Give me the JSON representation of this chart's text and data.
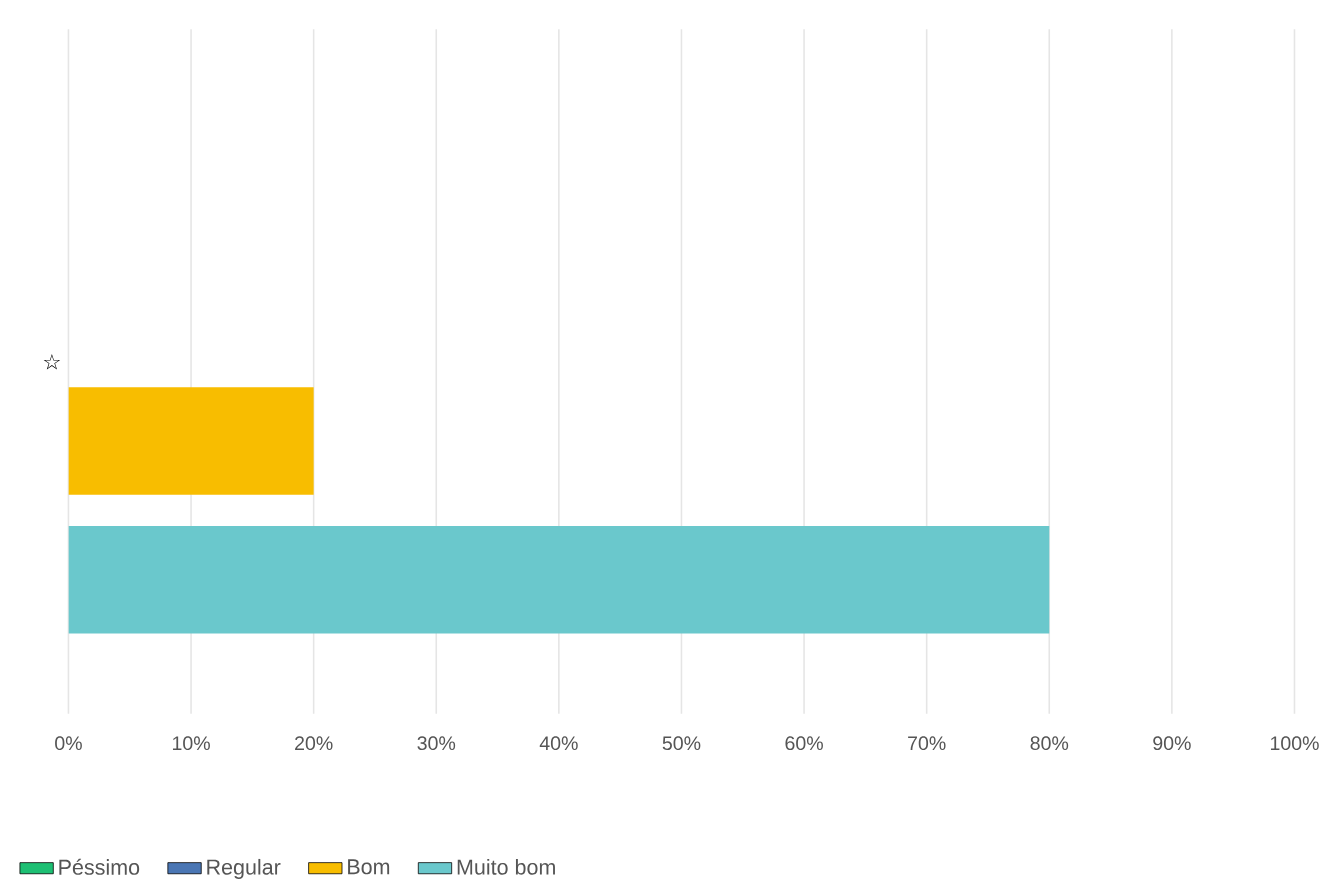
{
  "chart_data": {
    "type": "bar",
    "orientation": "horizontal",
    "categories": [
      "☆"
    ],
    "series": [
      {
        "name": "Péssimo",
        "color": "#1dbf73",
        "values": [
          0
        ]
      },
      {
        "name": "Regular",
        "color": "#4a76b4",
        "values": [
          0
        ]
      },
      {
        "name": "Bom",
        "color": "#f8bd00",
        "values": [
          20
        ]
      },
      {
        "name": "Muito bom",
        "color": "#6ac8cc",
        "values": [
          80
        ]
      }
    ],
    "xlim": [
      0,
      100
    ],
    "xticks": [
      {
        "value": 0,
        "label": "0%"
      },
      {
        "value": 10,
        "label": "10%"
      },
      {
        "value": 20,
        "label": "20%"
      },
      {
        "value": 30,
        "label": "30%"
      },
      {
        "value": 40,
        "label": "40%"
      },
      {
        "value": 50,
        "label": "50%"
      },
      {
        "value": 60,
        "label": "60%"
      },
      {
        "value": 70,
        "label": "70%"
      },
      {
        "value": 80,
        "label": "80%"
      },
      {
        "value": 90,
        "label": "90%"
      },
      {
        "value": 100,
        "label": "100%"
      }
    ],
    "grid": "x",
    "legend": "bottom"
  }
}
